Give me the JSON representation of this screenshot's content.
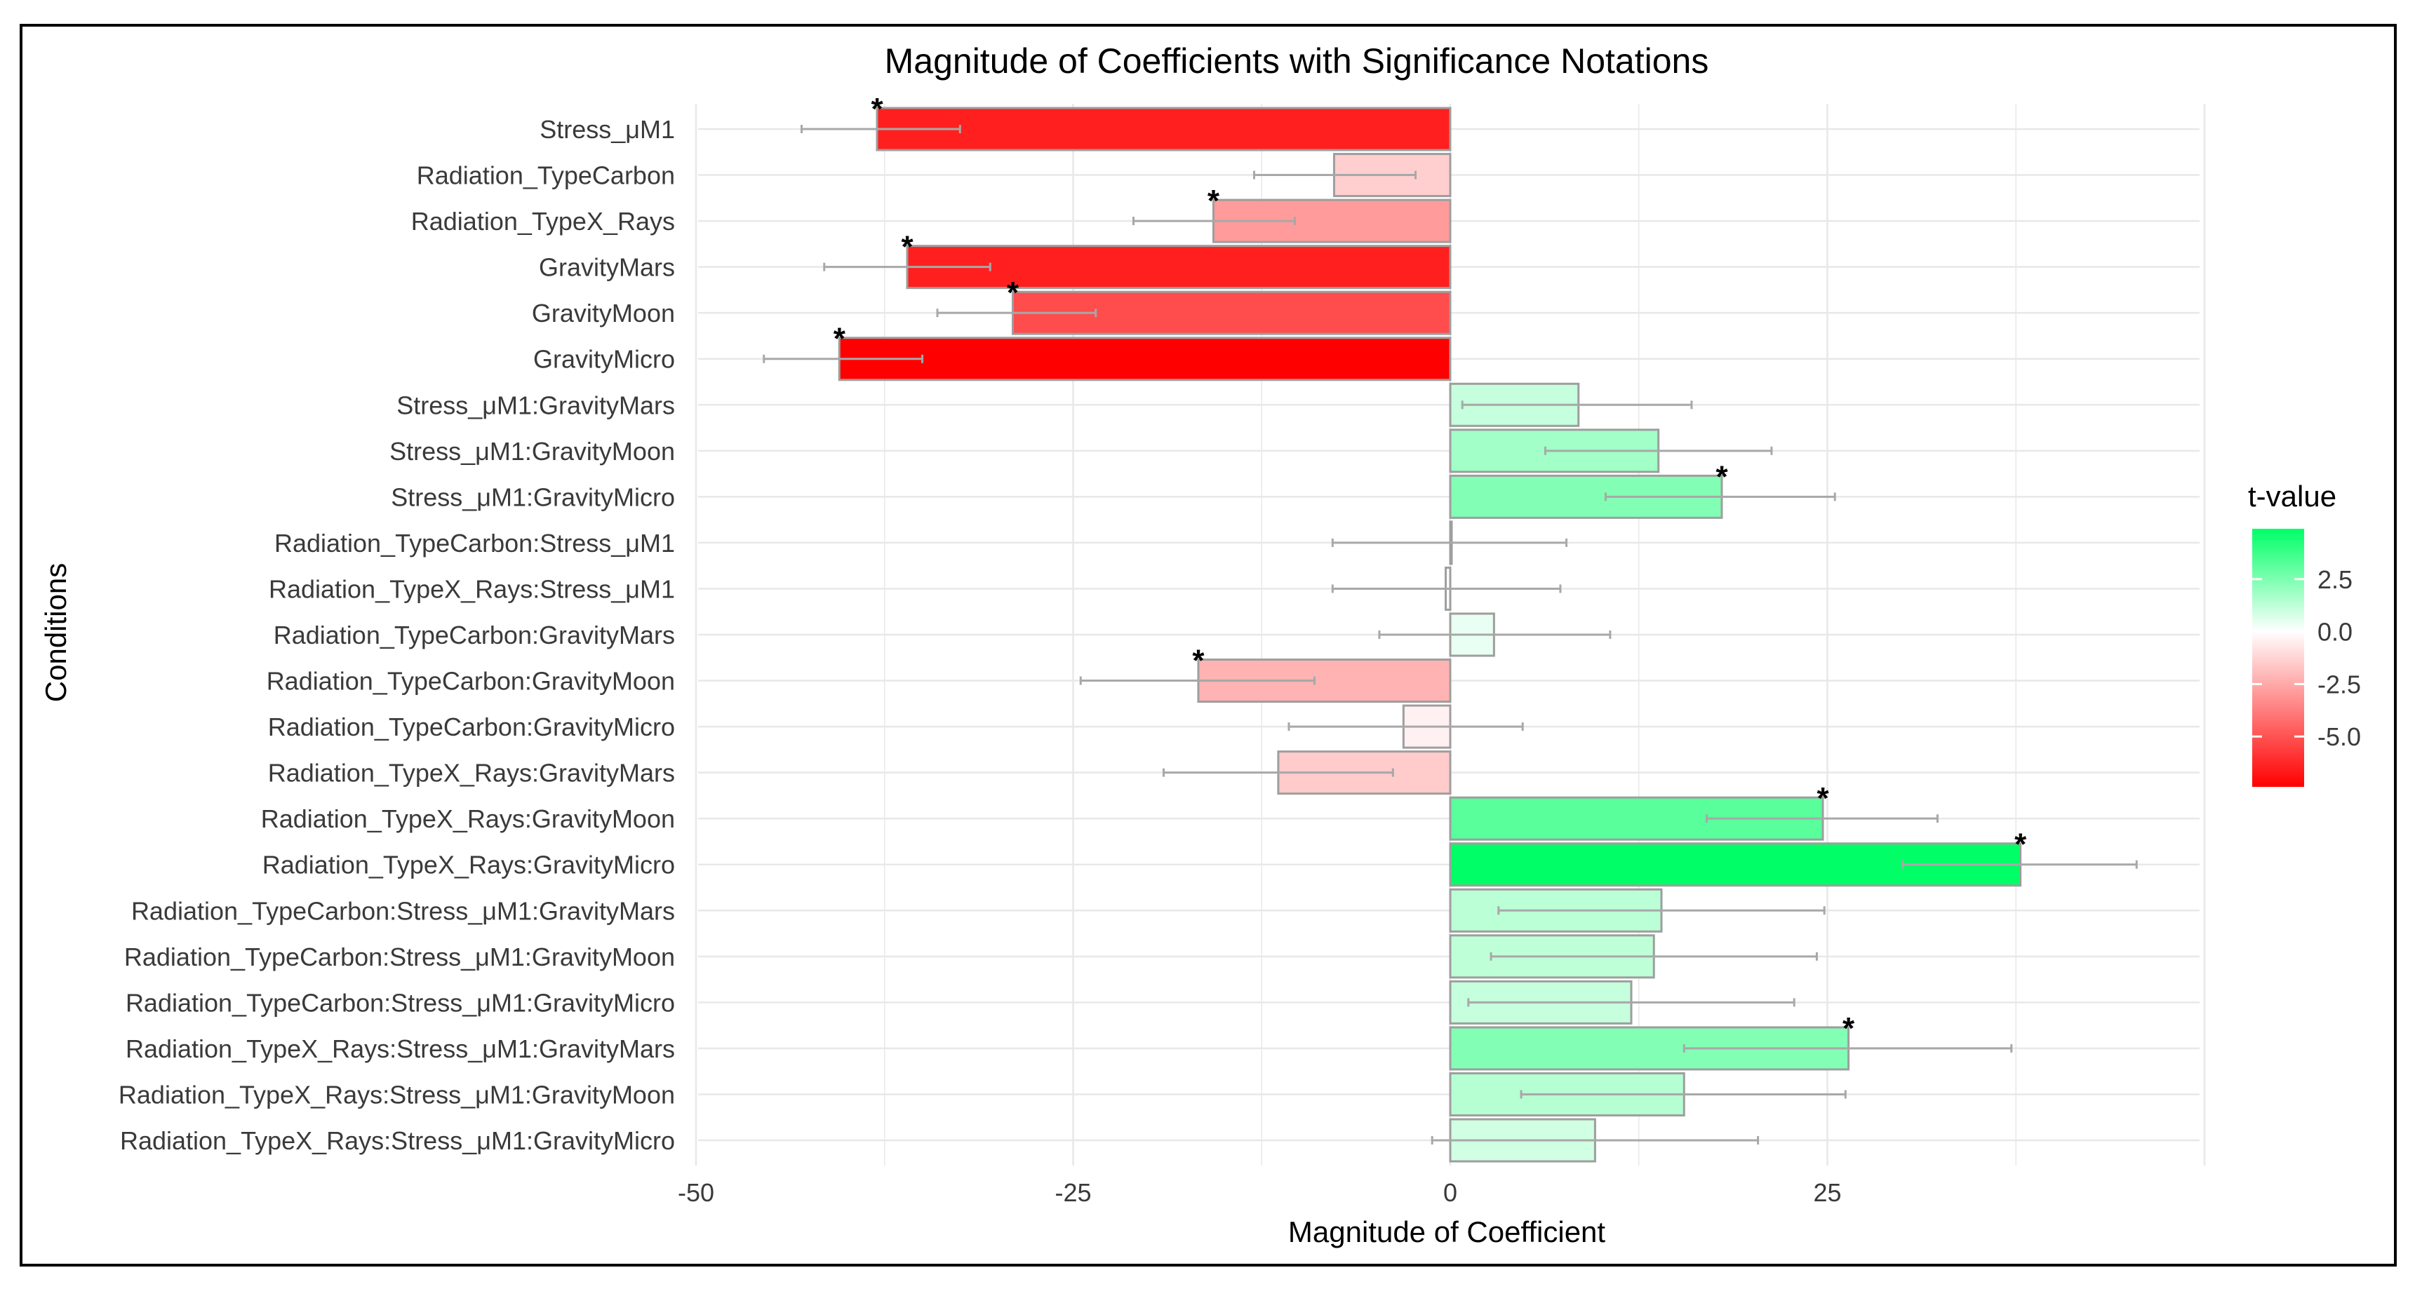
{
  "chart_data": {
    "type": "bar",
    "orientation": "horizontal",
    "title": "Magnitude of Coefficients with Significance Notations",
    "xlabel": "Magnitude of Coefficient",
    "ylabel": "Conditions",
    "xlim": [
      -50,
      50
    ],
    "xticks": [
      -50,
      -25,
      0,
      25
    ],
    "xtick_labels": [
      "-50",
      "-25",
      "0",
      "25"
    ],
    "grid": true,
    "significance_marker": "*",
    "bars": [
      {
        "label": "Stress_μM1",
        "value": -38,
        "lo": -43,
        "hi": -32.5,
        "t": -6.5,
        "sig": true
      },
      {
        "label": "Radiation_TypeCarbon",
        "value": -7.7,
        "lo": -13,
        "hi": -2.3,
        "t": -1.4,
        "sig": false
      },
      {
        "label": "Radiation_TypeX_Rays",
        "value": -15.7,
        "lo": -21,
        "hi": -10.3,
        "t": -2.9,
        "sig": true
      },
      {
        "label": "GravityMars",
        "value": -36,
        "lo": -41.5,
        "hi": -30.5,
        "t": -6.5,
        "sig": true
      },
      {
        "label": "GravityMoon",
        "value": -29,
        "lo": -34,
        "hi": -23.5,
        "t": -5.2,
        "sig": true
      },
      {
        "label": "GravityMicro",
        "value": -40.5,
        "lo": -45.5,
        "hi": -35,
        "t": -7.4,
        "sig": true
      },
      {
        "label": "Stress_μM1:GravityMars",
        "value": 8.5,
        "lo": 0.8,
        "hi": 16,
        "t": 1.1,
        "sig": false
      },
      {
        "label": "Stress_μM1:GravityMoon",
        "value": 13.8,
        "lo": 6.3,
        "hi": 21.3,
        "t": 1.8,
        "sig": false
      },
      {
        "label": "Stress_μM1:GravityMicro",
        "value": 18,
        "lo": 10.3,
        "hi": 25.5,
        "t": 2.4,
        "sig": true
      },
      {
        "label": "Radiation_TypeCarbon:Stress_μM1",
        "value": 0,
        "lo": -7.8,
        "hi": 7.7,
        "t": 0,
        "sig": false
      },
      {
        "label": "Radiation_TypeX_Rays:Stress_μM1",
        "value": -0.3,
        "lo": -7.8,
        "hi": 7.3,
        "t": -0.05,
        "sig": false
      },
      {
        "label": "Radiation_TypeCarbon:GravityMars",
        "value": 2.9,
        "lo": -4.7,
        "hi": 10.6,
        "t": 0.4,
        "sig": false
      },
      {
        "label": "Radiation_TypeCarbon:GravityMoon",
        "value": -16.7,
        "lo": -24.5,
        "hi": -9,
        "t": -2.2,
        "sig": true
      },
      {
        "label": "Radiation_TypeCarbon:GravityMicro",
        "value": -3.1,
        "lo": -10.7,
        "hi": 4.8,
        "t": -0.4,
        "sig": false
      },
      {
        "label": "Radiation_TypeX_Rays:GravityMars",
        "value": -11.4,
        "lo": -19,
        "hi": -3.8,
        "t": -1.5,
        "sig": false
      },
      {
        "label": "Radiation_TypeX_Rays:GravityMoon",
        "value": 24.7,
        "lo": 17,
        "hi": 32.3,
        "t": 3.2,
        "sig": true
      },
      {
        "label": "Radiation_TypeX_Rays:GravityMicro",
        "value": 37.8,
        "lo": 30,
        "hi": 45.5,
        "t": 4.9,
        "sig": true
      },
      {
        "label": "Radiation_TypeCarbon:Stress_μM1:GravityMars",
        "value": 14,
        "lo": 3.2,
        "hi": 24.8,
        "t": 1.3,
        "sig": false
      },
      {
        "label": "Radiation_TypeCarbon:Stress_μM1:GravityMoon",
        "value": 13.5,
        "lo": 2.7,
        "hi": 24.3,
        "t": 1.25,
        "sig": false
      },
      {
        "label": "Radiation_TypeCarbon:Stress_μM1:GravityMicro",
        "value": 12,
        "lo": 1.2,
        "hi": 22.8,
        "t": 1.1,
        "sig": false
      },
      {
        "label": "Radiation_TypeX_Rays:Stress_μM1:GravityMars",
        "value": 26.4,
        "lo": 15.5,
        "hi": 37.2,
        "t": 2.4,
        "sig": true
      },
      {
        "label": "Radiation_TypeX_Rays:Stress_μM1:GravityMoon",
        "value": 15.5,
        "lo": 4.7,
        "hi": 26.2,
        "t": 1.4,
        "sig": false
      },
      {
        "label": "Radiation_TypeX_Rays:Stress_μM1:GravityMicro",
        "value": 9.6,
        "lo": -1.2,
        "hi": 20.4,
        "t": 0.9,
        "sig": false
      }
    ],
    "legend": {
      "title": "t-value",
      "position": "right",
      "range": [
        -7.4,
        4.9
      ],
      "ticks": [
        2.5,
        0.0,
        -2.5,
        -5.0
      ],
      "tick_labels": [
        "2.5",
        "0.0",
        "-2.5",
        "-5.0"
      ],
      "low_color": "#ff0000",
      "mid_color": "#ffffff",
      "high_color": "#00ff66"
    },
    "colors": {
      "bar_outline": "#9e9e9e",
      "error_bar": "#a8a8a8",
      "grid": "#e8e8e8",
      "text": "#3a3a3a",
      "title": "#000000"
    }
  }
}
